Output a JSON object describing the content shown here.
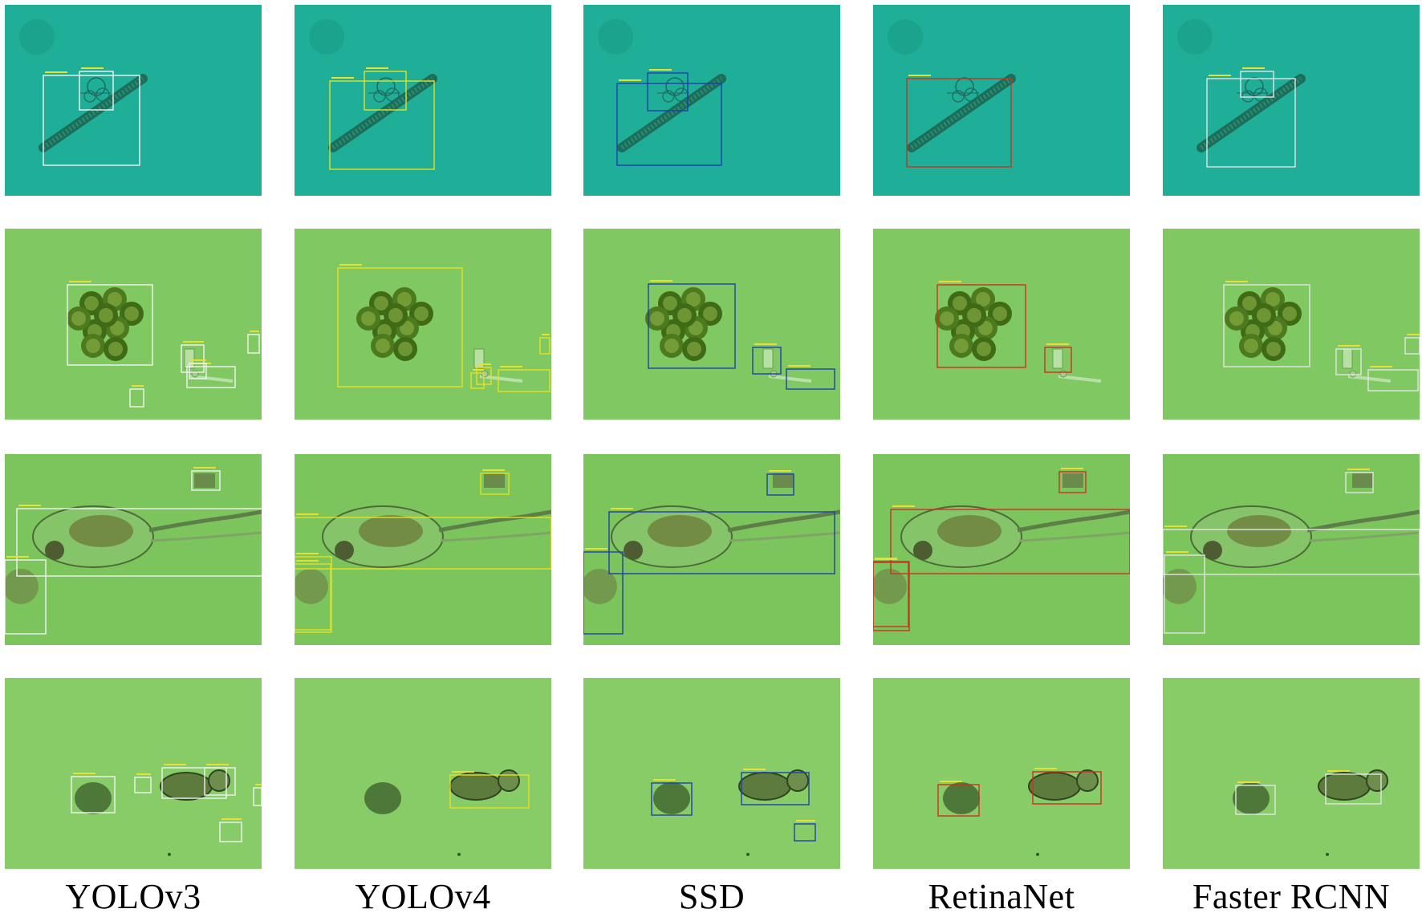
{
  "figure": {
    "columns": [
      {
        "label": "YOLOv3",
        "box_color": "#f2f2f2"
      },
      {
        "label": "YOLOv4",
        "box_color": "#e6e01e"
      },
      {
        "label": "SSD",
        "box_color": "#1f3fb0"
      },
      {
        "label": "RetinaNet",
        "box_color": "#d03020"
      },
      {
        "label": "Faster RCNN",
        "box_color": "#e4e4e4"
      }
    ],
    "rows": [
      {
        "subject": "diatom-chain-and-colony",
        "background": "#1fae98"
      },
      {
        "subject": "spherical-colony-cluster",
        "background": "#7fc862"
      },
      {
        "subject": "rotifer-with-long-tail",
        "background": "#7cc45c"
      },
      {
        "subject": "rotifer-and-dark-blob",
        "background": "#88cc68"
      }
    ]
  }
}
